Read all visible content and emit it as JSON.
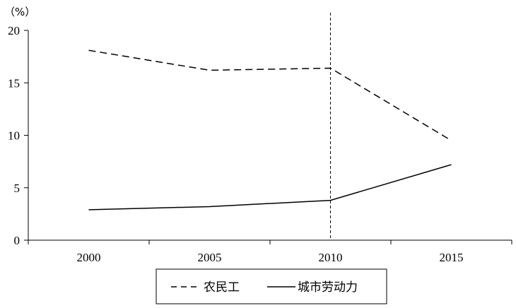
{
  "chart_data": {
    "type": "line",
    "title": "",
    "xlabel": "",
    "ylabel": "（%）",
    "x": [
      "2000",
      "2005",
      "2010",
      "2015"
    ],
    "ylim": [
      0,
      20
    ],
    "yticks": [
      "0",
      "5",
      "10",
      "15",
      "20"
    ],
    "grid": false,
    "reference_line_x": "2010",
    "series": [
      {
        "name": "农民工",
        "values": [
          18.1,
          16.2,
          16.4,
          9.5
        ],
        "style": "dashed",
        "color": "#000000"
      },
      {
        "name": "城市劳动力",
        "values": [
          2.9,
          3.2,
          3.8,
          7.2
        ],
        "style": "solid",
        "color": "#000000"
      }
    ],
    "legend_position": "bottom-center"
  }
}
